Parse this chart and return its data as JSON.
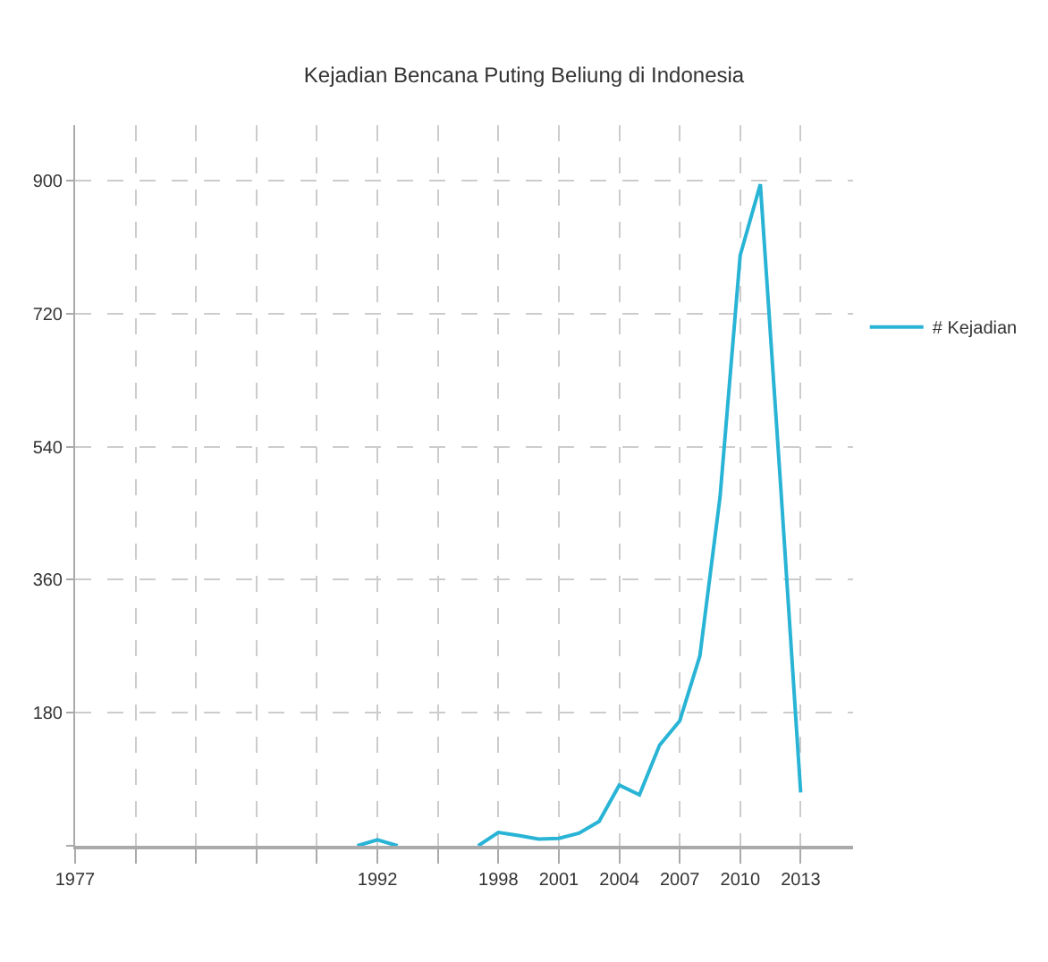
{
  "chart_data": {
    "type": "line",
    "title": "Kejadian Bencana Puting Beliung di Indonesia",
    "x": [
      1991,
      1992,
      1993,
      1994,
      1995,
      1996,
      1997,
      1998,
      1999,
      2000,
      2001,
      2002,
      2003,
      2004,
      2005,
      2006,
      2007,
      2008,
      2009,
      2010,
      2011,
      2012,
      2013
    ],
    "series": [
      {
        "name": "# Kejadian",
        "color": "#29b4d6",
        "values": [
          0,
          8,
          0,
          null,
          null,
          null,
          0,
          18,
          14,
          9,
          10,
          17,
          33,
          82,
          69,
          136,
          169,
          257,
          472,
          799,
          895,
          490,
          72
        ]
      }
    ],
    "xlim": [
      1977,
      2015.6
    ],
    "ylim": [
      0,
      975
    ],
    "xticks": [
      1977,
      {
        "value": 1980,
        "label": null
      },
      {
        "value": 1983,
        "label": null
      },
      {
        "value": 1986,
        "label": null
      },
      {
        "value": 1989,
        "label": null
      },
      1992,
      {
        "value": 1995,
        "label": null
      },
      1998,
      2001,
      2004,
      2007,
      2010,
      2013
    ],
    "yticks": [
      {
        "value": 0,
        "label": null
      },
      180,
      360,
      540,
      720,
      900
    ],
    "grid": true,
    "legend": "right",
    "marker": "none",
    "line_style": "solid"
  }
}
